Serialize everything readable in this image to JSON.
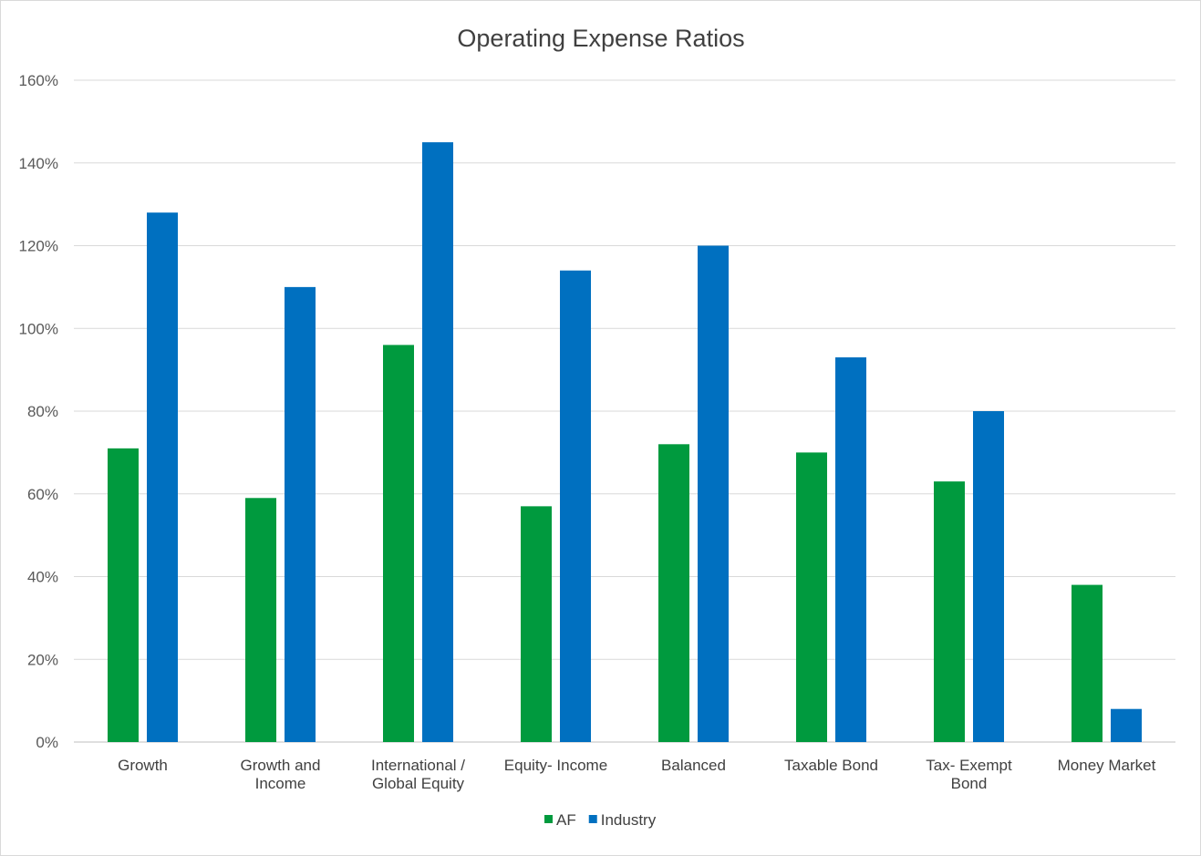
{
  "chart_data": {
    "type": "bar",
    "title": "Operating Expense Ratios",
    "xlabel": "",
    "ylabel": "",
    "ylim": [
      0,
      160
    ],
    "y_ticks": [
      0,
      20,
      40,
      60,
      80,
      100,
      120,
      140,
      160
    ],
    "y_tick_labels": [
      "0%",
      "20%",
      "40%",
      "60%",
      "80%",
      "100%",
      "120%",
      "140%",
      "160%"
    ],
    "grid": true,
    "legend_position": "bottom",
    "categories": [
      [
        "Growth"
      ],
      [
        "Growth and",
        "Income"
      ],
      [
        "International /",
        "Global Equity"
      ],
      [
        "Equity- Income"
      ],
      [
        "Balanced"
      ],
      [
        "Taxable Bond"
      ],
      [
        "Tax- Exempt",
        "Bond"
      ],
      [
        "Money Market"
      ]
    ],
    "series": [
      {
        "name": "AF",
        "color": "#009a3e",
        "values": [
          71,
          59,
          96,
          57,
          72,
          70,
          63,
          38
        ]
      },
      {
        "name": "Industry",
        "color": "#0070c0",
        "values": [
          128,
          110,
          145,
          114,
          120,
          93,
          80,
          8
        ]
      }
    ]
  }
}
